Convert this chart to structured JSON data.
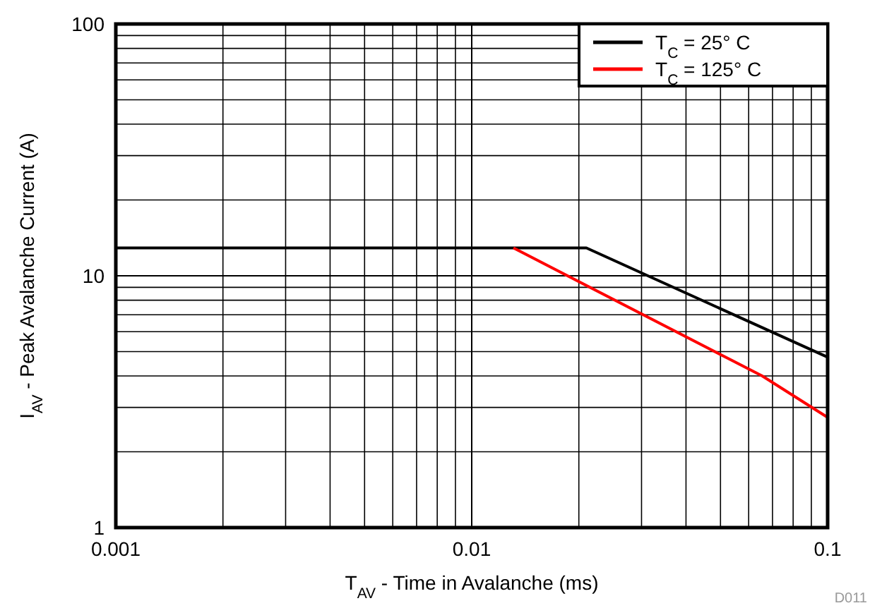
{
  "chart_data": {
    "type": "line",
    "xlabel": "T$_{AV}$ - Time in Avalanche (ms)",
    "ylabel": "I$_{AV}$ - Peak Avalanche Current (A)",
    "log": "xy",
    "grid": true,
    "legend": "top right",
    "marker": "none",
    "line_style": "solid",
    "xlim": [
      0.001,
      0.1
    ],
    "ylim": [
      1,
      100
    ],
    "xticks": [
      0.001,
      {
        "value": 0.002,
        "label": null
      },
      {
        "value": 0.003,
        "label": null
      },
      {
        "value": 0.004,
        "label": null
      },
      {
        "value": 0.005,
        "label": null
      },
      {
        "value": 0.006,
        "label": null
      },
      {
        "value": 0.007,
        "label": null
      },
      {
        "value": 0.008,
        "label": null
      },
      {
        "value": 0.009,
        "label": null
      },
      0.01,
      {
        "value": 0.02,
        "label": null
      },
      {
        "value": 0.03,
        "label": null
      },
      {
        "value": 0.04,
        "label": null
      },
      {
        "value": 0.05,
        "label": null
      },
      {
        "value": 0.06,
        "label": null
      },
      {
        "value": 0.07,
        "label": null
      },
      {
        "value": 0.08,
        "label": null
      },
      {
        "value": 0.09,
        "label": null
      },
      0.1
    ],
    "yticks": [
      1,
      {
        "value": 2,
        "label": null
      },
      {
        "value": 3,
        "label": null
      },
      {
        "value": 4,
        "label": null
      },
      {
        "value": 5,
        "label": null
      },
      {
        "value": 6,
        "label": null
      },
      {
        "value": 7,
        "label": null
      },
      {
        "value": 8,
        "label": null
      },
      {
        "value": 9,
        "label": null
      },
      10,
      {
        "value": 20,
        "label": null
      },
      {
        "value": 30,
        "label": null
      },
      {
        "value": 40,
        "label": null
      },
      {
        "value": 50,
        "label": null
      },
      {
        "value": 60,
        "label": null
      },
      {
        "value": 70,
        "label": null
      },
      {
        "value": 80,
        "label": null
      },
      {
        "value": 90,
        "label": null
      },
      100
    ],
    "series": [
      {
        "name": "T$_{C}$ = 25° C",
        "color": "#000000",
        "x": [
          0.001,
          0.021,
          0.1
        ],
        "values": [
          12.9,
          12.9,
          4.75
        ]
      },
      {
        "name": "T$_{C}$ = 125° C",
        "color": "#ff0000",
        "x": [
          0.0131,
          0.0655,
          0.1
        ],
        "values": [
          12.9,
          4.0,
          2.74
        ]
      }
    ],
    "annotations": [
      "D011"
    ]
  }
}
